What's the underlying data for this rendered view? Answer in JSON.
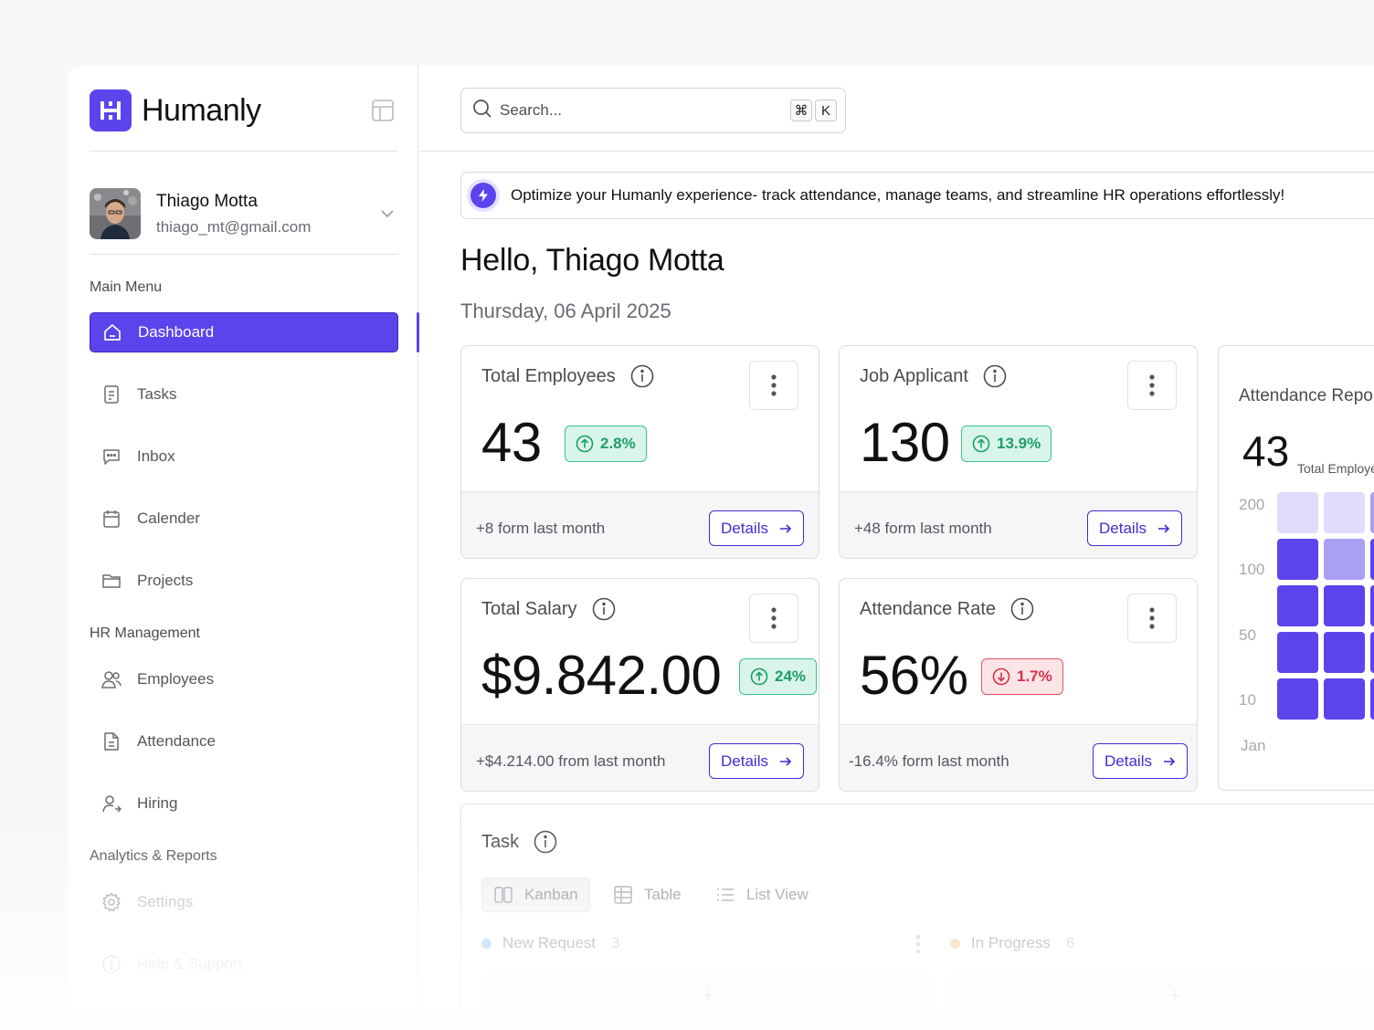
{
  "brand": {
    "name": "Humanly"
  },
  "user": {
    "name": "Thiago Motta",
    "email": "thiago_mt@gmail.com"
  },
  "sidebar": {
    "sections": [
      {
        "title": "Main Menu"
      },
      {
        "title": "HR Management"
      },
      {
        "title": "Analytics & Reports"
      }
    ],
    "items": [
      {
        "label": "Dashboard",
        "icon": "home-icon",
        "active": true
      },
      {
        "label": "Tasks",
        "icon": "document-icon"
      },
      {
        "label": "Inbox",
        "icon": "chat-icon"
      },
      {
        "label": "Calender",
        "icon": "calendar-icon"
      },
      {
        "label": "Projects",
        "icon": "folder-icon"
      },
      {
        "label": "Employees",
        "icon": "users-icon"
      },
      {
        "label": "Attendance",
        "icon": "file-icon"
      },
      {
        "label": "Hiring",
        "icon": "user-add-icon"
      },
      {
        "label": "Settings",
        "icon": "gear-icon"
      },
      {
        "label": "Help & Support",
        "icon": "help-icon"
      }
    ]
  },
  "search": {
    "placeholder": "Search...",
    "shortcut": [
      "⌘",
      "K"
    ]
  },
  "banner": {
    "text": "Optimize your Humanly experience- track attendance, manage teams, and streamline HR operations effortlessly!"
  },
  "greeting": {
    "title": "Hello, Thiago Motta",
    "date": "Thursday, 06 April 2025"
  },
  "stats": [
    {
      "title": "Total Employees",
      "value": "43",
      "change": "2.8%",
      "trend": "up",
      "footer": "+8 form last month",
      "action": "Details"
    },
    {
      "title": "Job Applicant",
      "value": "130",
      "change": "13.9%",
      "trend": "up",
      "footer": "+48 form last month",
      "action": "Details"
    },
    {
      "title": "Total Salary",
      "value": "$9.842.00",
      "change": "24%",
      "trend": "up",
      "footer": "+$4.214.00 from last month",
      "action": "Details"
    },
    {
      "title": "Attendance Rate",
      "value": "56%",
      "change": "1.7%",
      "trend": "down",
      "footer": "-16.4% form last month",
      "action": "Details"
    }
  ],
  "attendance_report": {
    "title": "Attendance Report",
    "value": "43",
    "subtitle": "Total Employees",
    "y_ticks": [
      "200",
      "100",
      "50",
      "10"
    ],
    "x_ticks": [
      "Jan"
    ],
    "colors": {
      "light": "#e0dcfb",
      "medium": "#a9a0f4",
      "dark": "#5b44ec"
    }
  },
  "task": {
    "title": "Task",
    "tabs": [
      {
        "label": "Kanban",
        "active": true
      },
      {
        "label": "Table"
      },
      {
        "label": "List View"
      }
    ],
    "columns": [
      {
        "label": "New Request",
        "count": "3",
        "color": "#8fc6f5"
      },
      {
        "label": "In Progress",
        "count": "6",
        "color": "#f4c98a"
      }
    ]
  },
  "colors": {
    "accent": "#5b44ec",
    "success": "#1f9c6b",
    "danger": "#d2344a"
  }
}
